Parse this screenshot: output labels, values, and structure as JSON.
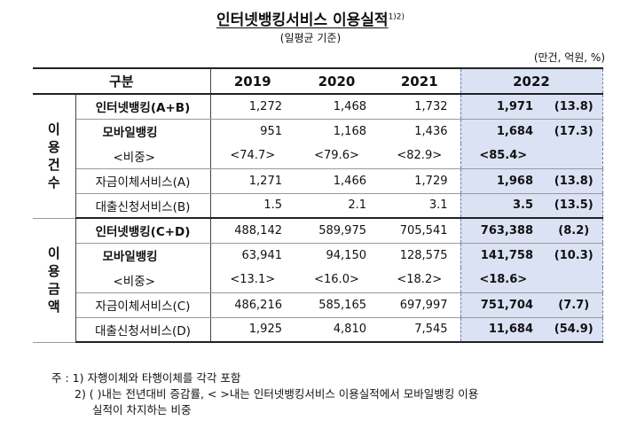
{
  "title": "인터넷뱅킹서비스 이용실적",
  "title_sup": "1)2)",
  "subtitle": "(일평균 기준)",
  "unit": "(만건, 억원, %)",
  "headers": [
    "구분",
    "2019",
    "2020",
    "2021",
    "2022"
  ],
  "groups": {
    "count": "이용건수",
    "amount": "이용금액"
  },
  "rows": [
    {
      "label": "인터넷뱅킹(A+B)",
      "y2019": "1,272",
      "y2020": "1,468",
      "y2021": "1,732",
      "y2022": "1,971",
      "chg": "(13.8)"
    },
    {
      "label": "모바일뱅킹",
      "y2019": "951",
      "y2020": "1,168",
      "y2021": "1,436",
      "y2022": "1,684",
      "chg": "(17.3)"
    },
    {
      "label": "<비중>",
      "y2019": "<74.7>",
      "y2020": "<79.6>",
      "y2021": "<82.9>",
      "y2022": "<85.4>",
      "chg": ""
    },
    {
      "label": "자금이체서비스(A)",
      "y2019": "1,271",
      "y2020": "1,466",
      "y2021": "1,729",
      "y2022": "1,968",
      "chg": "(13.8)"
    },
    {
      "label": "대출신청서비스(B)",
      "y2019": "1.5",
      "y2020": "2.1",
      "y2021": "3.1",
      "y2022": "3.5",
      "chg": "(13.5)"
    },
    {
      "label": "인터넷뱅킹(C+D)",
      "y2019": "488,142",
      "y2020": "589,975",
      "y2021": "705,541",
      "y2022": "763,388",
      "chg": "(8.2)"
    },
    {
      "label": "모바일뱅킹",
      "y2019": "63,941",
      "y2020": "94,150",
      "y2021": "128,575",
      "y2022": "141,758",
      "chg": "(10.3)"
    },
    {
      "label": "<비중>",
      "y2019": "<13.1>",
      "y2020": "<16.0>",
      "y2021": "<18.2>",
      "y2022": "<18.6>",
      "chg": ""
    },
    {
      "label": "자금이체서비스(C)",
      "y2019": "486,216",
      "y2020": "585,165",
      "y2021": "697,997",
      "y2022": "751,704",
      "chg": "(7.7)"
    },
    {
      "label": "대출신청서비스(D)",
      "y2019": "1,925",
      "y2020": "4,810",
      "y2021": "7,545",
      "y2022": "11,684",
      "chg": "(54.9)"
    }
  ],
  "notes": {
    "n1": "주 : 1) 자행이체와 타행이체를 각각 포함",
    "n2": "2) ( )내는 전년대비 증감률, < >내는 인터넷뱅킹서비스 이용실적에서 모바일뱅킹 이용",
    "n3": "실적이 차지하는 비중"
  },
  "colors": {
    "highlight": "#dbe2f4"
  }
}
